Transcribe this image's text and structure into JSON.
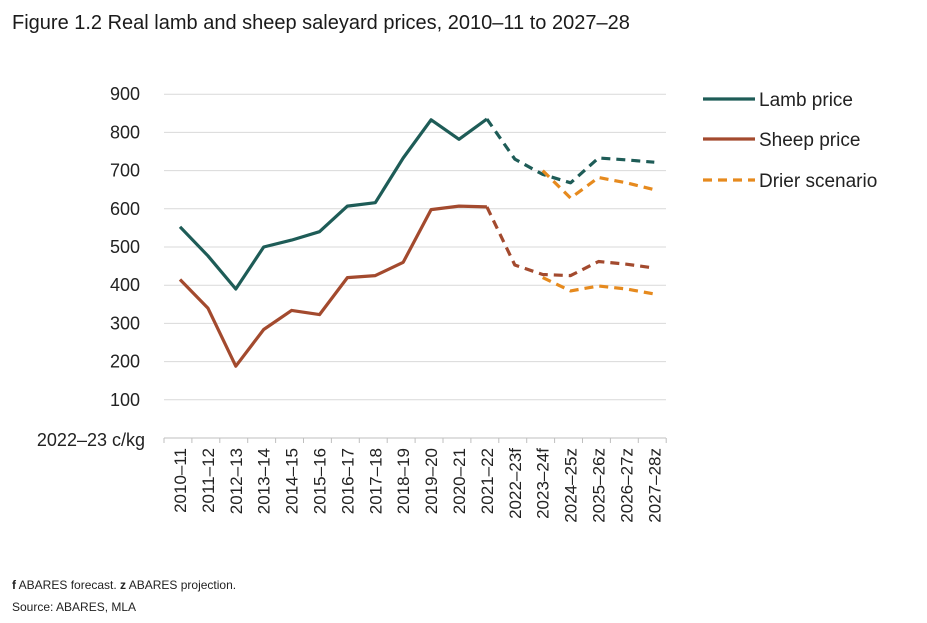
{
  "figure_title": "Figure 1.2 Real lamb and sheep saleyard prices, 2010–11 to 2027–28",
  "footnote": {
    "f_mark": "f",
    "f_text": " ABARES forecast. ",
    "z_mark": "z",
    "z_text": " ABARES projection."
  },
  "source": "Source: ABARES, MLA",
  "colors": {
    "lamb": "#1e5c57",
    "sheep": "#a34a2e",
    "drier": "#e68a1e",
    "grid": "#d9d9d9",
    "axis": "#bfbfbf"
  },
  "chart_data": {
    "type": "line",
    "title": "Figure 1.2 Real lamb and sheep saleyard prices, 2010–11 to 2027–28",
    "ylabel": "2022–23 c/kg",
    "xlabel": "",
    "ylim": [
      0,
      900
    ],
    "yticks": [
      100,
      200,
      300,
      400,
      500,
      600,
      700,
      800,
      900
    ],
    "grid": true,
    "legend_position": "top-right",
    "categories": [
      "2010–11",
      "2011–12",
      "2012–13",
      "2013–14",
      "2014–15",
      "2015–16",
      "2016–17",
      "2017–18",
      "2018–19",
      "2019–20",
      "2020–21",
      "2021–22",
      "2022–23f",
      "2023–24f",
      "2024–25z",
      "2025–26z",
      "2026–27z",
      "2027–28z"
    ],
    "series": [
      {
        "name": "Lamb price",
        "color": "#1e5c57",
        "style": "solid-then-dashed",
        "dash_from_index": 11,
        "values": [
          553,
          477,
          390,
          500,
          518,
          540,
          607,
          616,
          733,
          833,
          782,
          835,
          730,
          690,
          668,
          733,
          728,
          722
        ]
      },
      {
        "name": "Sheep price",
        "color": "#a34a2e",
        "style": "solid-then-dashed",
        "dash_from_index": 11,
        "values": [
          415,
          340,
          188,
          284,
          334,
          323,
          420,
          425,
          460,
          598,
          607,
          605,
          453,
          428,
          425,
          462,
          455,
          445
        ]
      },
      {
        "name": "Drier scenario",
        "color": "#e68a1e",
        "style": "dashed",
        "segments": [
          {
            "start_index": 13,
            "values": [
              700,
              628,
              682,
              668,
              650
            ]
          },
          {
            "start_index": 13,
            "values": [
              420,
              385,
              398,
              390,
              377
            ]
          }
        ]
      }
    ]
  }
}
